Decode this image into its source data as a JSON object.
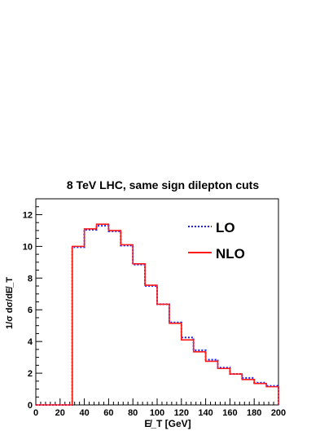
{
  "chart_data": {
    "type": "line",
    "title": "8 TeV LHC, same sign dilepton cuts",
    "xlabel": "E̸_T [GeV]",
    "ylabel": "1/σ dσ/dE̸_T",
    "xlim": [
      0,
      200
    ],
    "ylim": [
      0,
      13
    ],
    "x_ticks": [
      0,
      20,
      40,
      60,
      80,
      100,
      120,
      140,
      160,
      180,
      200
    ],
    "y_ticks": [
      0,
      2,
      4,
      6,
      8,
      10,
      12
    ],
    "grid": false,
    "legend_position": "top-right",
    "bin_edges": [
      0,
      10,
      20,
      30,
      40,
      50,
      60,
      70,
      80,
      90,
      100,
      110,
      120,
      130,
      140,
      150,
      160,
      170,
      180,
      190,
      200
    ],
    "series": [
      {
        "name": "LO",
        "style": "dotted",
        "color": "#1a1aff",
        "values": [
          0,
          0,
          0,
          9.95,
          11.05,
          11.3,
          10.95,
          10.05,
          8.85,
          7.5,
          6.35,
          5.2,
          4.25,
          3.45,
          2.85,
          2.35,
          1.95,
          1.7,
          1.4,
          1.2
        ]
      },
      {
        "name": "NLO",
        "style": "solid",
        "color": "#ff1a1a",
        "values": [
          0,
          0,
          0,
          10.0,
          11.1,
          11.4,
          11.0,
          10.1,
          8.9,
          7.55,
          6.35,
          5.15,
          4.1,
          3.35,
          2.75,
          2.3,
          1.95,
          1.6,
          1.35,
          1.15
        ]
      }
    ]
  }
}
